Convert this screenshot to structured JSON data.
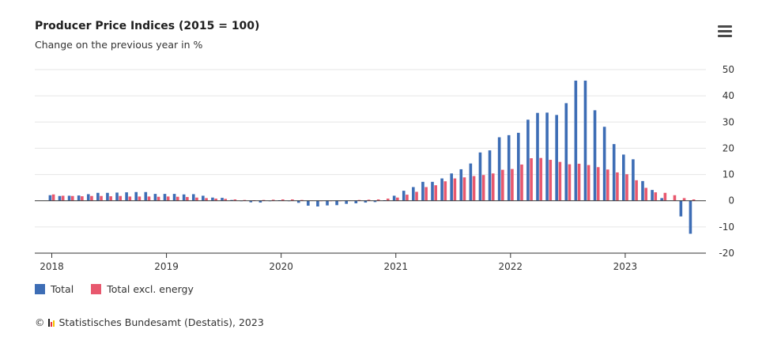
{
  "header": {
    "title": "Producer Price Indices (2015 = 100)",
    "subtitle": "Change on the previous year in %"
  },
  "menu_icon": "hamburger-menu-icon",
  "legend": [
    {
      "label": "Total",
      "color": "#3d6db5"
    },
    {
      "label": "Total excl. energy",
      "color": "#e8586e"
    }
  ],
  "credits": {
    "copyright": "©",
    "text": "Statistisches Bundesamt (Destatis), 2023",
    "logo_colors": [
      "#1f1f1f",
      "#e8303a",
      "#f5c400"
    ]
  },
  "chart_data": {
    "type": "bar",
    "yticks": [
      50,
      40,
      30,
      20,
      10,
      0,
      -10,
      -20
    ],
    "ylim": [
      -20,
      50
    ],
    "xticks": [
      "2018",
      "2019",
      "2020",
      "2021",
      "2022",
      "2023"
    ],
    "categories": [
      "2018-01",
      "2018-02",
      "2018-03",
      "2018-04",
      "2018-05",
      "2018-06",
      "2018-07",
      "2018-08",
      "2018-09",
      "2018-10",
      "2018-11",
      "2018-12",
      "2019-01",
      "2019-02",
      "2019-03",
      "2019-04",
      "2019-05",
      "2019-06",
      "2019-07",
      "2019-08",
      "2019-09",
      "2019-10",
      "2019-11",
      "2019-12",
      "2020-01",
      "2020-02",
      "2020-03",
      "2020-04",
      "2020-05",
      "2020-06",
      "2020-07",
      "2020-08",
      "2020-09",
      "2020-10",
      "2020-11",
      "2020-12",
      "2021-01",
      "2021-02",
      "2021-03",
      "2021-04",
      "2021-05",
      "2021-06",
      "2021-07",
      "2021-08",
      "2021-09",
      "2021-10",
      "2021-11",
      "2021-12",
      "2022-01",
      "2022-02",
      "2022-03",
      "2022-04",
      "2022-05",
      "2022-06",
      "2022-07",
      "2022-08",
      "2022-09",
      "2022-10",
      "2022-11",
      "2022-12",
      "2023-01",
      "2023-02",
      "2023-03",
      "2023-04",
      "2023-05",
      "2023-06",
      "2023-07",
      "2023-08"
    ],
    "series": [
      {
        "name": "Total",
        "color": "#3d6db5",
        "values": [
          2.1,
          1.8,
          1.9,
          2.0,
          2.5,
          3.0,
          3.0,
          3.1,
          3.2,
          3.3,
          3.3,
          2.6,
          2.6,
          2.6,
          2.4,
          2.5,
          1.9,
          1.2,
          1.1,
          0.3,
          -0.1,
          -0.6,
          -0.7,
          -0.2,
          0.2,
          -0.1,
          -0.8,
          -1.9,
          -2.2,
          -1.8,
          -1.7,
          -1.2,
          -1.0,
          -0.7,
          -0.5,
          0.2,
          1.9,
          3.8,
          5.2,
          7.2,
          7.2,
          8.5,
          10.4,
          12.0,
          14.2,
          18.4,
          19.2,
          24.2,
          25.0,
          25.9,
          30.9,
          33.5,
          33.6,
          32.7,
          37.2,
          45.8,
          45.8,
          34.5,
          28.2,
          21.6,
          17.6,
          15.8,
          7.5,
          4.1,
          1.0,
          0.1,
          -6.0,
          -12.6
        ]
      },
      {
        "name": "Total excl. energy",
        "color": "#e8586e",
        "values": [
          2.4,
          1.9,
          1.8,
          1.7,
          1.8,
          1.8,
          1.7,
          1.8,
          1.6,
          1.6,
          1.6,
          1.5,
          1.6,
          1.5,
          1.4,
          1.2,
          1.0,
          0.8,
          0.7,
          0.5,
          0.3,
          0.2,
          0.3,
          0.4,
          0.5,
          0.5,
          0.3,
          0.1,
          0.0,
          -0.1,
          0.0,
          0.1,
          0.3,
          0.4,
          0.5,
          0.8,
          1.2,
          2.3,
          3.4,
          5.2,
          5.9,
          7.4,
          8.5,
          8.9,
          9.4,
          9.8,
          10.4,
          11.8,
          12.1,
          13.8,
          16.2,
          16.3,
          15.6,
          14.8,
          13.9,
          14.1,
          13.6,
          12.8,
          11.9,
          10.8,
          10.1,
          7.8,
          4.9,
          3.2,
          3.0,
          2.1,
          1.0,
          0.5
        ]
      }
    ]
  }
}
